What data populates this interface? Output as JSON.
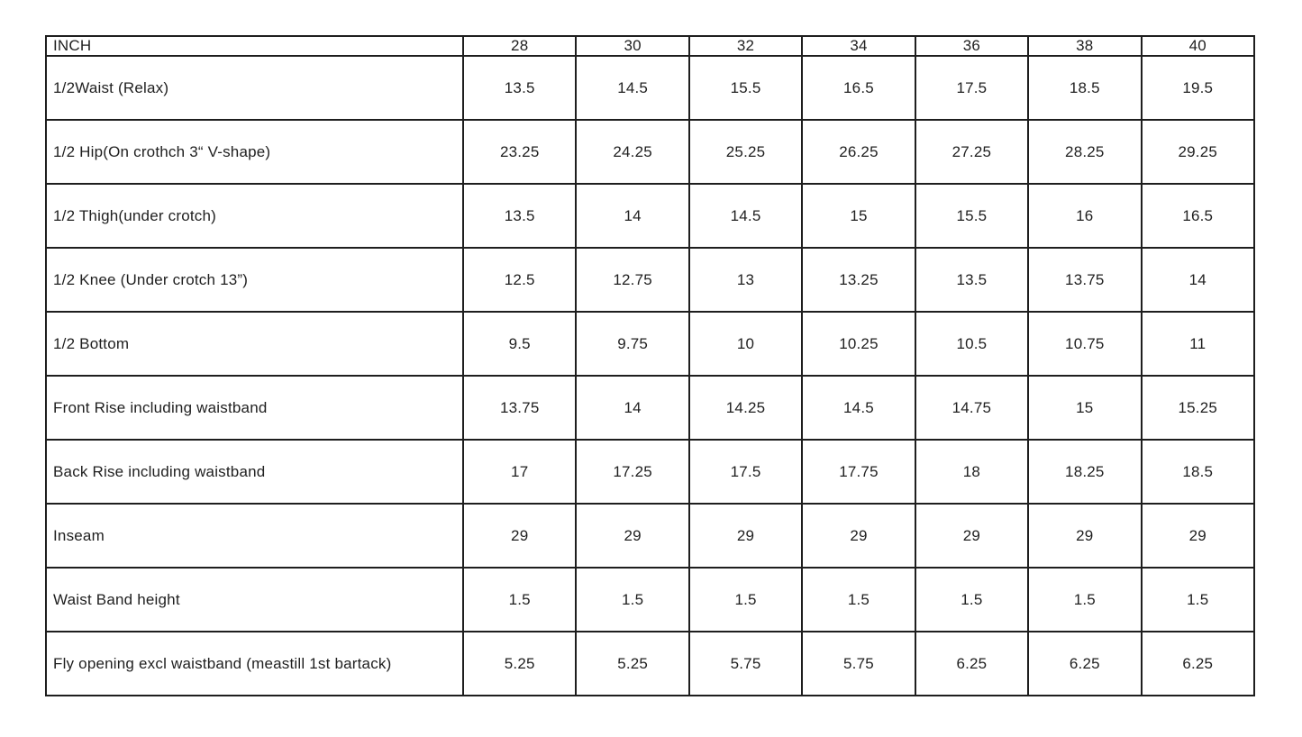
{
  "page": {
    "background_color": "#ffffff",
    "border_color": "#1e1e1e",
    "text_color": "#1f1f1f"
  },
  "chart_data": {
    "type": "table",
    "title": "",
    "unit_label": "INCH",
    "header": [
      "INCH",
      "28",
      "30",
      "32",
      "34",
      "36",
      "38",
      "40"
    ],
    "rows": [
      {
        "label": "1/2Waist (Relax)",
        "values": [
          "13.5",
          "14.5",
          "15.5",
          "16.5",
          "17.5",
          "18.5",
          "19.5"
        ]
      },
      {
        "label": "1/2 Hip(On crothch 3“ V-shape)",
        "values": [
          "23.25",
          "24.25",
          "25.25",
          "26.25",
          "27.25",
          "28.25",
          "29.25"
        ]
      },
      {
        "label": "1/2 Thigh(under crotch)",
        "values": [
          "13.5",
          "14",
          "14.5",
          "15",
          "15.5",
          "16",
          "16.5"
        ]
      },
      {
        "label": "1/2 Knee (Under crotch 13”)",
        "values": [
          "12.5",
          "12.75",
          "13",
          "13.25",
          "13.5",
          "13.75",
          "14"
        ]
      },
      {
        "label": "1/2 Bottom",
        "values": [
          "9.5",
          "9.75",
          "10",
          "10.25",
          "10.5",
          "10.75",
          "11"
        ]
      },
      {
        "label": "Front Rise including waistband",
        "values": [
          "13.75",
          "14",
          "14.25",
          "14.5",
          "14.75",
          "15",
          "15.25"
        ]
      },
      {
        "label": "Back Rise including waistband",
        "values": [
          "17",
          "17.25",
          "17.5",
          "17.75",
          "18",
          "18.25",
          "18.5"
        ]
      },
      {
        "label": "Inseam",
        "values": [
          "29",
          "29",
          "29",
          "29",
          "29",
          "29",
          "29"
        ]
      },
      {
        "label": "Waist Band height",
        "values": [
          "1.5",
          "1.5",
          "1.5",
          "1.5",
          "1.5",
          "1.5",
          "1.5"
        ]
      },
      {
        "label": "Fly opening excl waistband (meastill 1st bartack)",
        "values": [
          "5.25",
          "5.25",
          "5.75",
          "5.75",
          "6.25",
          "6.25",
          "6.25"
        ]
      }
    ]
  }
}
